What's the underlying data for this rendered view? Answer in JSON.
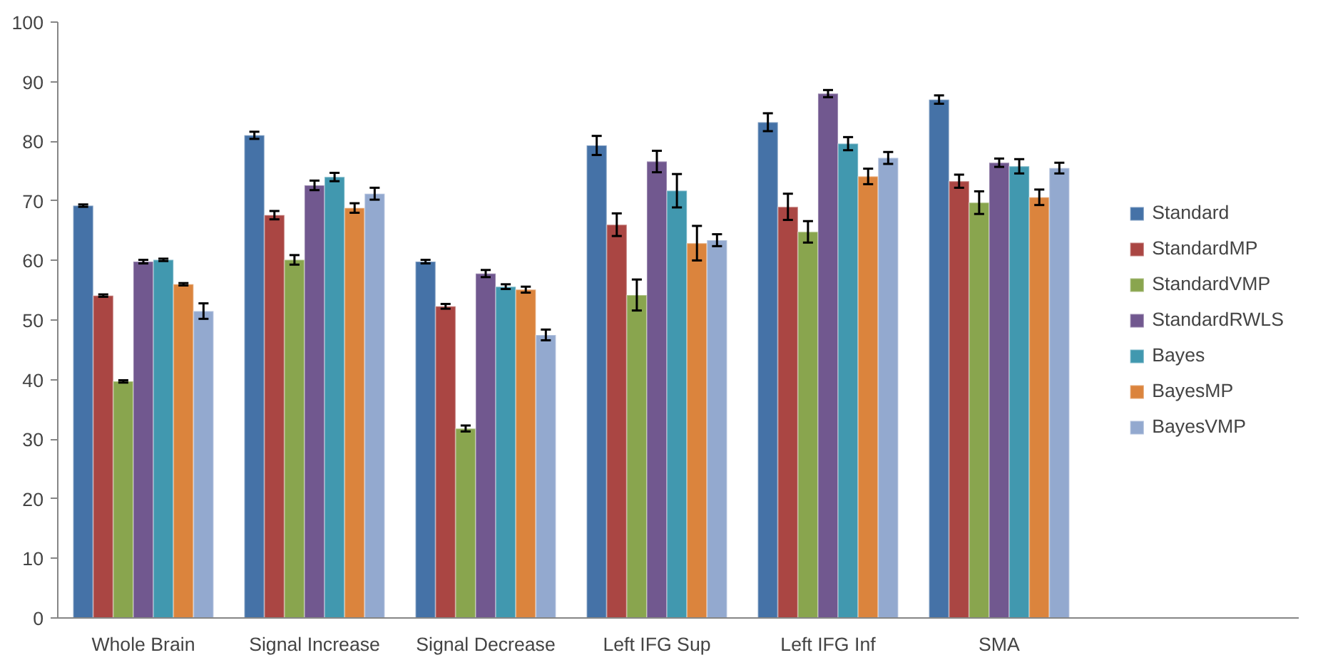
{
  "chart_data": {
    "type": "bar",
    "categories": [
      "Whole Brain",
      "Signal Increase",
      "Signal Decrease",
      "Left IFG Sup",
      "Left IFG Inf",
      "SMA"
    ],
    "series": [
      {
        "name": "Standard",
        "color": "#4572a7",
        "values": [
          69.2,
          81,
          59.8,
          79.3,
          83.2,
          87
        ],
        "errors": [
          0.2,
          0.6,
          0.3,
          1.6,
          1.5,
          0.7
        ]
      },
      {
        "name": "StandardMP",
        "color": "#aa4643",
        "values": [
          54.1,
          67.6,
          52.3,
          66,
          69,
          73.3
        ],
        "errors": [
          0.2,
          0.7,
          0.4,
          1.9,
          2.2,
          1.1
        ]
      },
      {
        "name": "StandardVMP",
        "color": "#89a54e",
        "values": [
          39.7,
          60.1,
          31.8,
          54.2,
          64.8,
          69.7
        ],
        "errors": [
          0.2,
          0.8,
          0.5,
          2.6,
          1.8,
          1.9
        ]
      },
      {
        "name": "StandardRWLS",
        "color": "#71588f",
        "values": [
          59.8,
          72.6,
          57.8,
          76.6,
          88,
          76.4
        ],
        "errors": [
          0.3,
          0.8,
          0.6,
          1.8,
          0.6,
          0.7
        ]
      },
      {
        "name": "Bayes",
        "color": "#4198af",
        "values": [
          60.1,
          74,
          55.6,
          71.7,
          79.6,
          75.8
        ],
        "errors": [
          0.2,
          0.7,
          0.4,
          2.8,
          1.1,
          1.2
        ]
      },
      {
        "name": "BayesMP",
        "color": "#db843d",
        "values": [
          56,
          68.8,
          55.1,
          62.9,
          74.1,
          70.6
        ],
        "errors": [
          0.2,
          0.8,
          0.5,
          2.9,
          1.3,
          1.3
        ]
      },
      {
        "name": "BayesVMP",
        "color": "#93a9cf",
        "values": [
          51.5,
          71.2,
          47.5,
          63.4,
          77.2,
          75.5
        ],
        "errors": [
          1.3,
          1.0,
          0.9,
          1.0,
          1.0,
          0.9
        ]
      }
    ],
    "ylim": [
      0,
      100
    ],
    "yticks": [
      0,
      10,
      20,
      30,
      40,
      50,
      60,
      70,
      80,
      90,
      100
    ],
    "grid": false,
    "legend": "right"
  }
}
